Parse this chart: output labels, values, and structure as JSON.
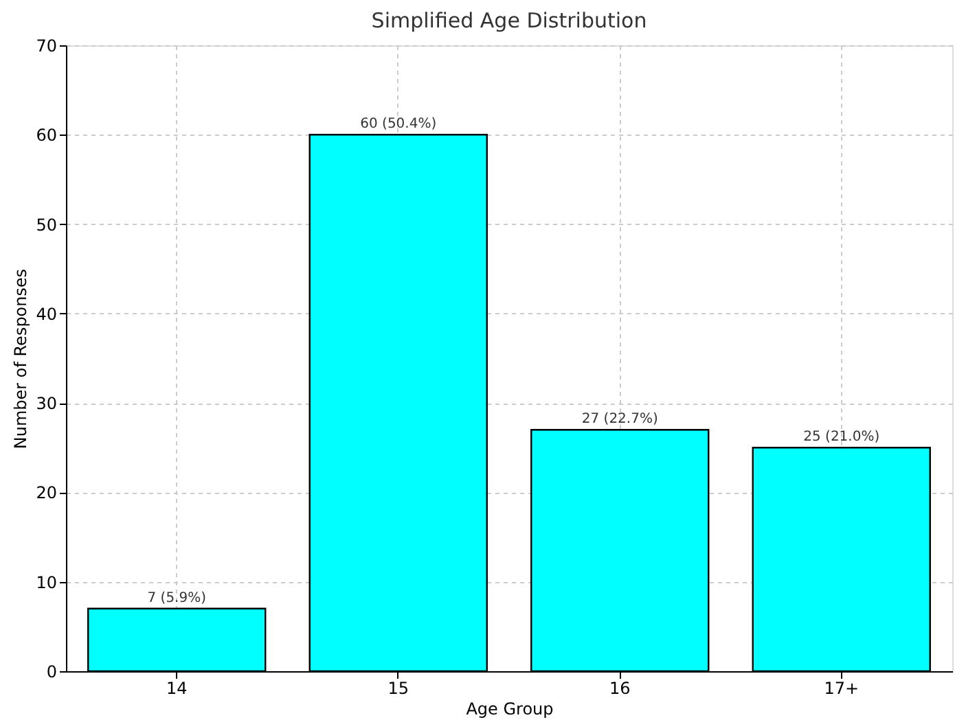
{
  "chart_data": {
    "type": "bar",
    "title": "Simplified Age Distribution",
    "xlabel": "Age Group",
    "ylabel": "Number of Responses",
    "categories": [
      "14",
      "15",
      "16",
      "17+"
    ],
    "values": [
      7,
      60,
      27,
      25
    ],
    "value_labels": [
      "7 (5.9%)",
      "60 (50.4%)",
      "27 (22.7%)",
      "25 (21.0%)"
    ],
    "color": "#00ffff",
    "ylim": [
      0,
      70
    ],
    "yticks": [
      0,
      10,
      20,
      30,
      40,
      50,
      60,
      70
    ],
    "grid": true
  }
}
